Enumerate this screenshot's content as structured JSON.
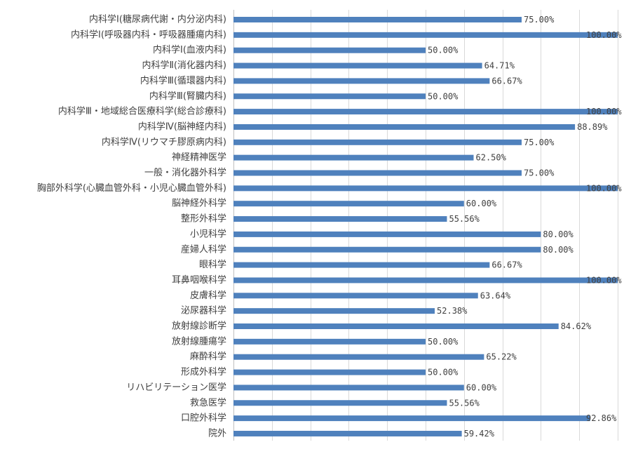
{
  "chart_data": {
    "type": "bar",
    "orientation": "horizontal",
    "categories": [
      "内科学Ⅰ(糖尿病代謝・内分泌内科)",
      "内科学Ⅰ(呼吸器内科・呼吸器腫瘍内科)",
      "内科学Ⅰ(血液内科)",
      "内科学Ⅱ(消化器内科)",
      "内科学Ⅲ(循環器内科)",
      "内科学Ⅲ(腎臓内科)",
      "内科学Ⅲ・地域総合医療科学(総合診療科)",
      "内科学Ⅳ(脳神経内科)",
      "内科学Ⅳ(リウマチ膠原病内科)",
      "神経精神医学",
      "一般・消化器外科学",
      "胸部外科学(心臓血管外科・小児心臓血管外科)",
      "脳神経外科学",
      "整形外科学",
      "小児科学",
      "産婦人科学",
      "眼科学",
      "耳鼻咽喉科学",
      "皮膚科学",
      "泌尿器科学",
      "放射線診断学",
      "放射線腫瘍学",
      "麻酔科学",
      "形成外科学",
      "リハビリテーション医学",
      "救急医学",
      "口腔外科学",
      "院外"
    ],
    "values": [
      75.0,
      100.0,
      50.0,
      64.71,
      66.67,
      50.0,
      100.0,
      88.89,
      75.0,
      62.5,
      75.0,
      100.0,
      60.0,
      55.56,
      80.0,
      80.0,
      66.67,
      100.0,
      63.64,
      52.38,
      84.62,
      50.0,
      65.22,
      50.0,
      60.0,
      55.56,
      92.86,
      59.42
    ],
    "value_labels": [
      "75.00%",
      "100.00%",
      "50.00%",
      "64.71%",
      "66.67%",
      "50.00%",
      "100.00%",
      "88.89%",
      "75.00%",
      "62.50%",
      "75.00%",
      "100.00%",
      "60.00%",
      "55.56%",
      "80.00%",
      "80.00%",
      "66.67%",
      "100.00%",
      "63.64%",
      "52.38%",
      "84.62%",
      "50.00%",
      "65.22%",
      "50.00%",
      "60.00%",
      "55.56%",
      "92.86%",
      "59.42%"
    ],
    "xlim": [
      0,
      100
    ],
    "grid": true,
    "colors": {
      "bar": "#4f81bd",
      "grid": "#d9d9d9",
      "text": "#404040"
    }
  }
}
